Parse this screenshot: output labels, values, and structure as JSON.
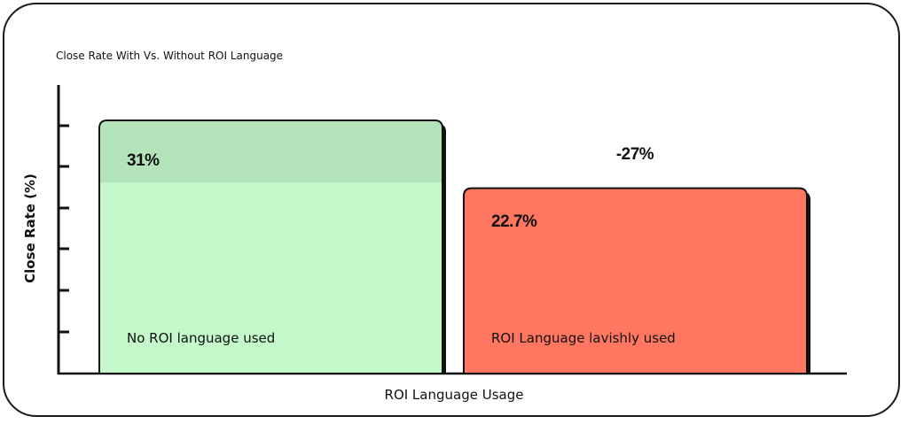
{
  "chart_data": {
    "type": "bar",
    "title": "Close Rate With Vs. Without ROI Language",
    "xlabel": "ROI Language Usage",
    "ylabel": "Close Rate (%)",
    "categories": [
      "No ROI language used",
      "ROI Language lavishly used"
    ],
    "values": [
      31,
      22.7
    ],
    "value_labels": [
      "31%",
      "22.7%"
    ],
    "colors": [
      "#c4f7c9",
      "#ff7661"
    ],
    "annotation": "-27%",
    "ylim": [
      0,
      31
    ],
    "grid": false
  }
}
